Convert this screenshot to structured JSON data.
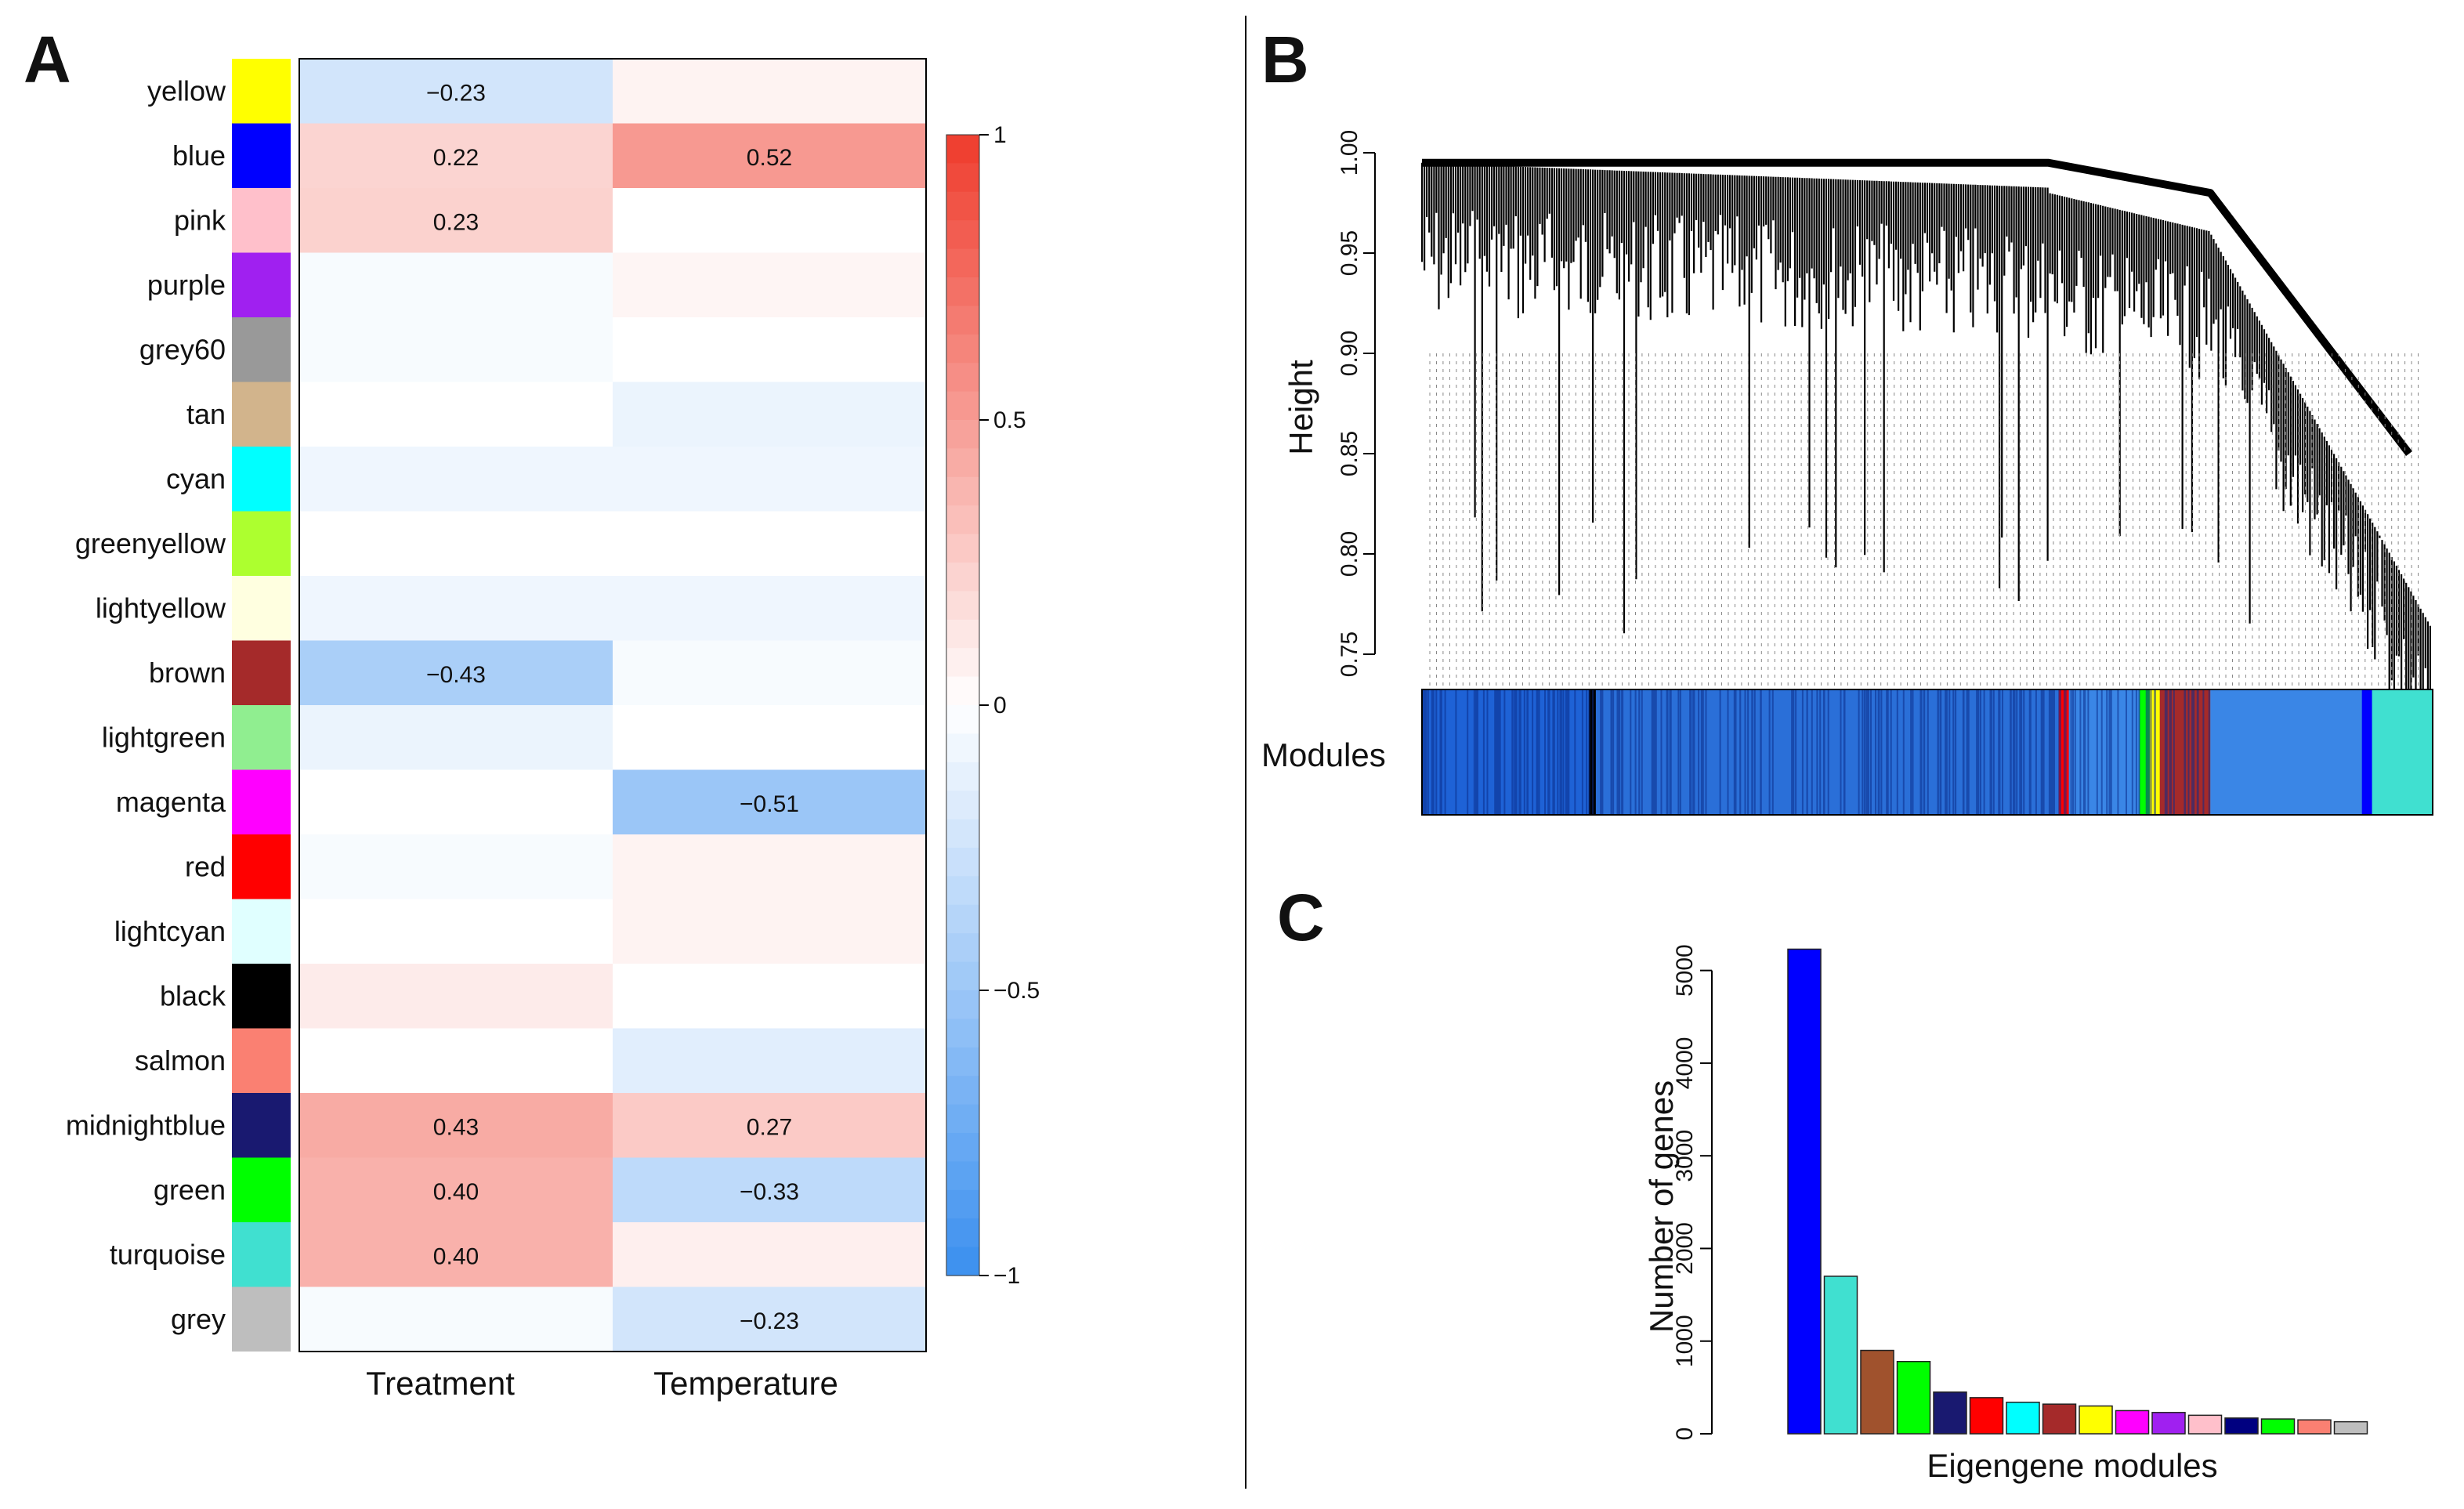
{
  "panels": {
    "a": "A",
    "b": "B",
    "c": "C"
  },
  "colors": {
    "pos": "#ef3b2c",
    "neg": "#3a8fef",
    "zero": "#ffffff",
    "tree": "#000000",
    "frame": "#000000"
  },
  "chart_data": [
    {
      "type": "heatmap",
      "panel": "A",
      "title": "",
      "columns": [
        "Treatment",
        "Temperature"
      ],
      "rows": [
        {
          "module": "yellow",
          "color": "#ffff00",
          "values": [
            -0.23,
            0.06
          ],
          "labels": [
            "-0.23",
            ""
          ]
        },
        {
          "module": "blue",
          "color": "#0000ff",
          "values": [
            0.22,
            0.52
          ],
          "labels": [
            "0.22",
            "0.52"
          ]
        },
        {
          "module": "pink",
          "color": "#ffc0cb",
          "values": [
            0.23,
            0.0
          ],
          "labels": [
            "0.23",
            ""
          ]
        },
        {
          "module": "purple",
          "color": "#a020f0",
          "values": [
            -0.04,
            0.05
          ],
          "labels": [
            "",
            ""
          ]
        },
        {
          "module": "grey60",
          "color": "#999999",
          "values": [
            -0.04,
            0.0
          ],
          "labels": [
            "",
            ""
          ]
        },
        {
          "module": "tan",
          "color": "#d2b48c",
          "values": [
            0.0,
            -0.1
          ],
          "labels": [
            "",
            ""
          ]
        },
        {
          "module": "cyan",
          "color": "#00ffff",
          "values": [
            -0.08,
            -0.08
          ],
          "labels": [
            "",
            ""
          ]
        },
        {
          "module": "greenyellow",
          "color": "#adff2f",
          "values": [
            0.0,
            0.0
          ],
          "labels": [
            "",
            ""
          ]
        },
        {
          "module": "lightyellow",
          "color": "#ffffe0",
          "values": [
            -0.08,
            -0.08
          ],
          "labels": [
            "",
            ""
          ]
        },
        {
          "module": "brown",
          "color": "#a52a2a",
          "values": [
            -0.43,
            -0.04
          ],
          "labels": [
            "-0.43",
            ""
          ]
        },
        {
          "module": "lightgreen",
          "color": "#90ee90",
          "values": [
            -0.1,
            0.0
          ],
          "labels": [
            "",
            ""
          ]
        },
        {
          "module": "magenta",
          "color": "#ff00ff",
          "values": [
            0.0,
            -0.51
          ],
          "labels": [
            "",
            "-0.51"
          ]
        },
        {
          "module": "red",
          "color": "#ff0000",
          "values": [
            -0.04,
            0.06
          ],
          "labels": [
            "",
            ""
          ]
        },
        {
          "module": "lightcyan",
          "color": "#e0ffff",
          "values": [
            0.0,
            0.06
          ],
          "labels": [
            "",
            ""
          ]
        },
        {
          "module": "black",
          "color": "#000000",
          "values": [
            0.1,
            0.0
          ],
          "labels": [
            "",
            ""
          ]
        },
        {
          "module": "salmon",
          "color": "#fa8072",
          "values": [
            0.0,
            -0.15
          ],
          "labels": [
            "",
            ""
          ]
        },
        {
          "module": "midnightblue",
          "color": "#191970",
          "values": [
            0.43,
            0.27
          ],
          "labels": [
            "0.43",
            "0.27"
          ]
        },
        {
          "module": "green",
          "color": "#00ff00",
          "values": [
            0.4,
            -0.33
          ],
          "labels": [
            "0.40",
            "-0.33"
          ]
        },
        {
          "module": "turquoise",
          "color": "#40e0d0",
          "values": [
            0.4,
            0.08
          ],
          "labels": [
            "0.40",
            ""
          ]
        },
        {
          "module": "grey",
          "color": "#bebebe",
          "values": [
            -0.04,
            -0.23
          ],
          "labels": [
            "",
            "-0.23"
          ]
        }
      ],
      "colorbar": {
        "min": -1,
        "max": 1,
        "ticks": [
          1,
          0.5,
          0,
          -0.5,
          -1
        ],
        "tick_labels": [
          "1",
          "0.5",
          "0",
          "−0.5",
          "−1"
        ]
      }
    },
    {
      "type": "dendrogram",
      "panel": "B",
      "ylabel": "Height",
      "ylim": [
        0.75,
        1.0
      ],
      "yticks": [
        0.75,
        0.8,
        0.85,
        0.9,
        0.95,
        1.0
      ],
      "ytick_labels": [
        "0.75",
        "0.80",
        "0.85",
        "0.90",
        "0.95",
        "1.00"
      ],
      "module_bar_label": "Modules"
    },
    {
      "type": "bar",
      "panel": "C",
      "xlabel": "Eigengene modules",
      "ylabel": "Number of genes",
      "ylim": [
        0,
        5200
      ],
      "yticks": [
        0,
        1000,
        2000,
        3000,
        4000,
        5000
      ],
      "ytick_labels": [
        "0",
        "1000",
        "2000",
        "3000",
        "4000",
        "5000"
      ],
      "colors": [
        "#0000ff",
        "#40e0d0",
        "#a0522d",
        "#00ff00",
        "#191970",
        "#ff0000",
        "#00ffff",
        "#a52a2a",
        "#ffff00",
        "#ff00ff",
        "#a020f0",
        "#ffc0cb",
        "#000080",
        "#00ff00",
        "#fa8072",
        "#bebebe"
      ],
      "values": [
        5230,
        1700,
        900,
        780,
        450,
        390,
        340,
        320,
        300,
        250,
        230,
        200,
        170,
        160,
        150,
        130
      ]
    }
  ]
}
